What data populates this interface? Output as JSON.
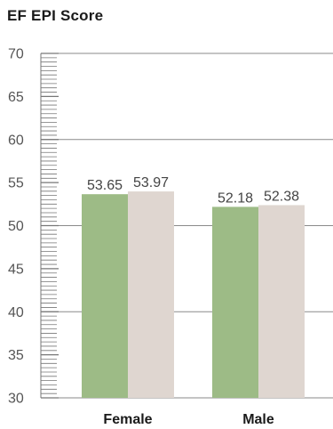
{
  "chart_data": {
    "type": "bar",
    "title": "EF EPI Score",
    "xlabel": "",
    "ylabel": "",
    "categories": [
      "Female",
      "Male"
    ],
    "series": [
      {
        "values": [
          53.65,
          52.18
        ],
        "color": "#9dbb86"
      },
      {
        "values": [
          53.97,
          52.38
        ],
        "color": "#dfd6d0"
      }
    ],
    "ylim": [
      30,
      70
    ],
    "major_ticks": [
      30,
      35,
      40,
      45,
      50,
      55,
      60,
      65,
      70
    ],
    "gridlines": [
      30,
      40,
      50,
      60,
      70
    ],
    "minor_tick_step": 0.5,
    "grid": true,
    "legend": "none",
    "value_labels": [
      "53.65",
      "52.18",
      "53.97",
      "52.38"
    ],
    "grid_color": "#8a8a8a"
  }
}
